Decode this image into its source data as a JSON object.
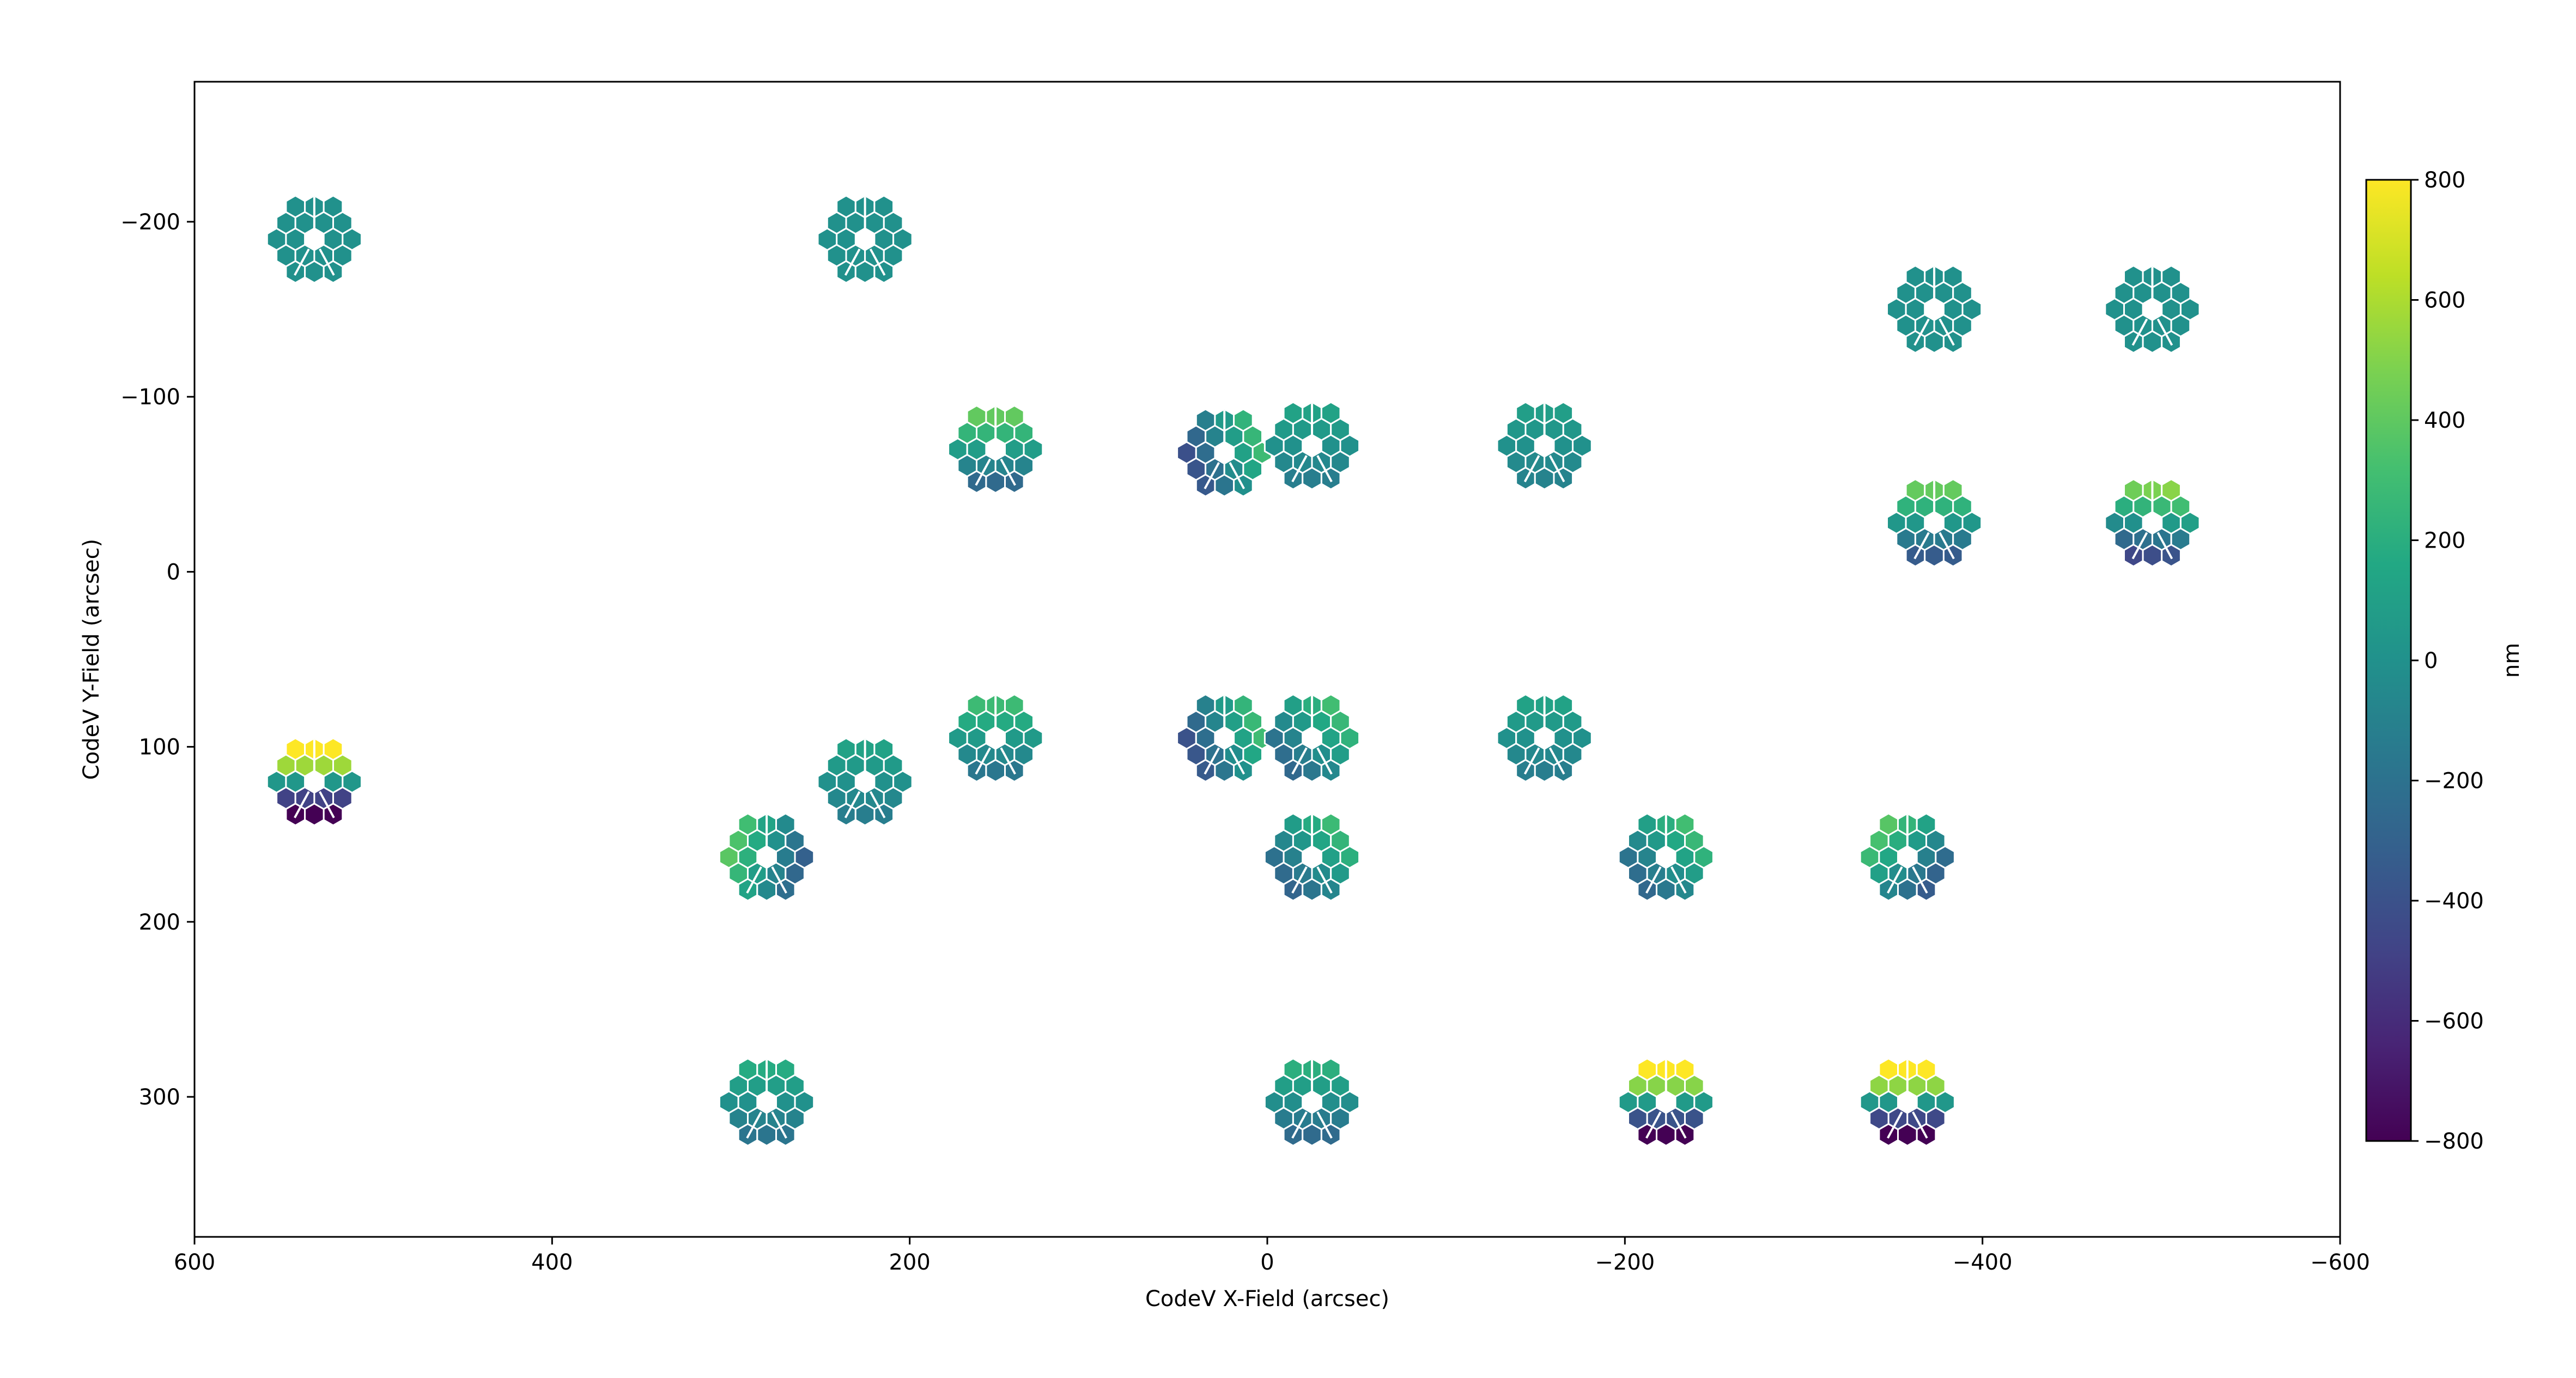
{
  "chart_data": {
    "type": "scatter",
    "title": "",
    "xlabel": "CodeV X-Field (arcsec)",
    "ylabel": "CodeV Y-Field (arcsec)",
    "xlim": [
      600,
      -600
    ],
    "ylim": [
      380,
      -280
    ],
    "x_inverted": true,
    "y_inverted": true,
    "xticks": [
      600,
      400,
      200,
      0,
      -200,
      -400,
      -600
    ],
    "xtick_labels": [
      "600",
      "400",
      "200",
      "0",
      "−200",
      "−400",
      "−600"
    ],
    "yticks": [
      -200,
      -100,
      0,
      100,
      200,
      300
    ],
    "ytick_labels": [
      "−200",
      "−100",
      "0",
      "100",
      "200",
      "300"
    ],
    "grid": false,
    "marker": "18-segment hexagonal mirror wavefront map",
    "colormap": "viridis",
    "colorbar": {
      "label": "nm",
      "range": [
        -800,
        800
      ],
      "ticks": [
        800,
        600,
        400,
        200,
        0,
        -200,
        -400,
        -600,
        -800
      ],
      "tick_labels": [
        "800",
        "600",
        "400",
        "200",
        "0",
        "−200",
        "−400",
        "−600",
        "−800"
      ]
    },
    "points": [
      {
        "x": 533,
        "y": -190,
        "tilt": [
          0,
          0
        ],
        "offset": 0
      },
      {
        "x": 225,
        "y": -190,
        "tilt": [
          0,
          0
        ],
        "offset": 0
      },
      {
        "x": -373,
        "y": -150,
        "tilt": [
          0,
          0
        ],
        "offset": 0
      },
      {
        "x": -495,
        "y": -150,
        "tilt": [
          0,
          0
        ],
        "offset": 0
      },
      {
        "x": 152,
        "y": -70,
        "tilt": [
          0,
          -220
        ],
        "offset": 80
      },
      {
        "x": 24,
        "y": -68,
        "tilt": [
          200,
          -80
        ],
        "offset": -60
      },
      {
        "x": -25,
        "y": -72,
        "tilt": [
          0,
          -80
        ],
        "offset": 0
      },
      {
        "x": -155,
        "y": -72,
        "tilt": [
          0,
          -60
        ],
        "offset": 0
      },
      {
        "x": -373,
        "y": -28,
        "tilt": [
          0,
          -250
        ],
        "offset": 40
      },
      {
        "x": -495,
        "y": -28,
        "tilt": [
          40,
          -300
        ],
        "offset": 30
      },
      {
        "x": 533,
        "y": 120,
        "tilt": [
          0,
          -700
        ],
        "offset": 40
      },
      {
        "x": 225,
        "y": 120,
        "tilt": [
          0,
          -80
        ],
        "offset": 0
      },
      {
        "x": 152,
        "y": 95,
        "tilt": [
          0,
          -150
        ],
        "offset": 60
      },
      {
        "x": 24,
        "y": 95,
        "tilt": [
          200,
          -80
        ],
        "offset": -50
      },
      {
        "x": -25,
        "y": 95,
        "tilt": [
          120,
          -120
        ],
        "offset": 20
      },
      {
        "x": -155,
        "y": 95,
        "tilt": [
          0,
          -80
        ],
        "offset": 0
      },
      {
        "x": 280,
        "y": 163,
        "tilt": [
          -200,
          -60
        ],
        "offset": 40
      },
      {
        "x": -25,
        "y": 163,
        "tilt": [
          120,
          -120
        ],
        "offset": 0
      },
      {
        "x": -223,
        "y": 163,
        "tilt": [
          120,
          -120
        ],
        "offset": 20
      },
      {
        "x": -358,
        "y": 163,
        "tilt": [
          -150,
          -150
        ],
        "offset": 20
      },
      {
        "x": 280,
        "y": 303,
        "tilt": [
          0,
          -120
        ],
        "offset": 0
      },
      {
        "x": -25,
        "y": 303,
        "tilt": [
          0,
          -150
        ],
        "offset": -20
      },
      {
        "x": -223,
        "y": 303,
        "tilt": [
          0,
          -600
        ],
        "offset": 60
      },
      {
        "x": -358,
        "y": 303,
        "tilt": [
          0,
          -650
        ],
        "offset": 40
      }
    ]
  }
}
